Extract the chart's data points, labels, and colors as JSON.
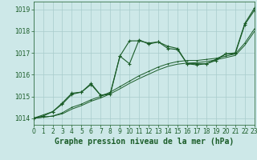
{
  "bg_color": "#cde8e8",
  "grid_color": "#a8cccc",
  "line_color": "#1a5c28",
  "title": "Graphe pression niveau de la mer (hPa)",
  "xlim": [
    0,
    23
  ],
  "ylim": [
    1013.7,
    1019.35
  ],
  "yticks": [
    1014,
    1015,
    1016,
    1017,
    1018,
    1019
  ],
  "xticks": [
    0,
    1,
    2,
    3,
    4,
    5,
    6,
    7,
    8,
    9,
    10,
    11,
    12,
    13,
    14,
    15,
    16,
    17,
    18,
    19,
    20,
    21,
    22,
    23
  ],
  "series1_x": [
    0,
    1,
    2,
    3,
    4,
    5,
    6,
    7,
    8,
    9,
    10,
    11,
    12,
    13,
    14,
    15,
    16,
    17,
    18,
    19,
    20,
    21,
    22,
    23
  ],
  "series1_y": [
    1014.0,
    1014.1,
    1014.3,
    1014.7,
    1015.15,
    1015.2,
    1015.6,
    1015.05,
    1015.15,
    1016.85,
    1017.55,
    1017.55,
    1017.45,
    1017.5,
    1017.2,
    1017.15,
    1016.5,
    1016.45,
    1016.5,
    1016.7,
    1016.95,
    1017.0,
    1018.35,
    1019.05
  ],
  "series2_x": [
    0,
    2,
    3,
    4,
    5,
    6,
    7,
    8,
    9,
    10,
    11,
    12,
    13,
    14,
    15,
    16,
    17,
    18,
    19,
    20,
    21,
    22,
    23
  ],
  "series2_y": [
    1014.0,
    1014.3,
    1014.65,
    1015.1,
    1015.2,
    1015.55,
    1015.05,
    1015.1,
    1016.85,
    1016.5,
    1017.6,
    1017.4,
    1017.5,
    1017.3,
    1017.2,
    1016.5,
    1016.5,
    1016.5,
    1016.65,
    1016.95,
    1016.95,
    1018.3,
    1018.95
  ],
  "series3_x": [
    0,
    1,
    2,
    3,
    4,
    5,
    6,
    7,
    8,
    9,
    10,
    11,
    12,
    13,
    14,
    15,
    16,
    17,
    18,
    19,
    20,
    21,
    22,
    23
  ],
  "series3_y": [
    1014.0,
    1014.05,
    1014.1,
    1014.25,
    1014.5,
    1014.65,
    1014.85,
    1015.0,
    1015.2,
    1015.45,
    1015.7,
    1015.95,
    1016.15,
    1016.35,
    1016.5,
    1016.6,
    1016.65,
    1016.65,
    1016.7,
    1016.75,
    1016.85,
    1016.95,
    1017.45,
    1018.1
  ],
  "series4_x": [
    0,
    1,
    2,
    3,
    4,
    5,
    6,
    7,
    8,
    9,
    10,
    11,
    12,
    13,
    14,
    15,
    16,
    17,
    18,
    19,
    20,
    21,
    22,
    23
  ],
  "series4_y": [
    1014.0,
    1014.05,
    1014.1,
    1014.2,
    1014.42,
    1014.58,
    1014.78,
    1014.93,
    1015.12,
    1015.35,
    1015.6,
    1015.82,
    1016.02,
    1016.22,
    1016.38,
    1016.48,
    1016.53,
    1016.55,
    1016.6,
    1016.68,
    1016.78,
    1016.88,
    1017.35,
    1017.98
  ],
  "title_color": "#1a5c28",
  "title_fontsize": 7.0,
  "tick_fontsize": 5.5
}
